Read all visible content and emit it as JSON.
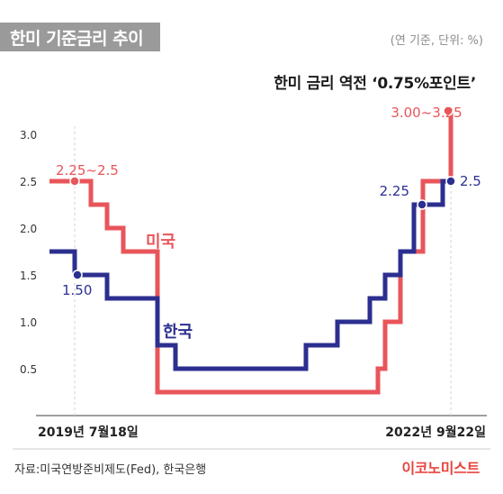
{
  "header": {
    "title": "한미 기준금리 추이",
    "unit_note": "(연 기준, 단위: %)",
    "subtitle": "한미 금리 역전 ‘0.75%포인트’"
  },
  "footer": {
    "source": "자료:미국연방준비제도(Fed), 한국은행",
    "brand": "이코노미스트"
  },
  "colors": {
    "us": "#e8555a",
    "korea": "#2c2f8f",
    "grid": "#d0d0d0"
  },
  "chart_data": {
    "type": "line",
    "step": true,
    "x_labels": {
      "start": "2019년 7월18일",
      "end": "2022년 9월22일"
    },
    "yticks": [
      "0.5",
      "1.0",
      "1.5",
      "2.0",
      "2.5",
      "3.0"
    ],
    "ylim": [
      0,
      3.0
    ],
    "series": [
      {
        "name": "미국",
        "values": [
          2.5,
          2.5,
          2.25,
          2.0,
          1.75,
          1.75,
          1.75,
          0.25,
          0.25,
          0.25,
          0.25,
          0.25,
          0.25,
          0.25,
          0.25,
          0.25,
          0.25,
          0.25,
          0.25,
          0.25,
          0.5,
          1.0,
          1.75,
          1.75,
          2.5,
          2.5,
          3.25
        ]
      },
      {
        "name": "한국",
        "values": [
          1.75,
          1.5,
          1.5,
          1.25,
          1.25,
          1.25,
          1.25,
          0.75,
          0.5,
          0.5,
          0.5,
          0.5,
          0.5,
          0.5,
          0.5,
          0.75,
          0.75,
          1.0,
          1.0,
          1.25,
          1.25,
          1.5,
          1.75,
          2.25,
          2.25,
          2.5,
          2.5
        ]
      }
    ],
    "annotations": [
      {
        "series": "미국",
        "index": 1,
        "text": "2.25~2.5"
      },
      {
        "series": "한국",
        "index": 1,
        "text": "1.50"
      },
      {
        "series": "한국",
        "index": 24,
        "text": "2.25"
      },
      {
        "series": "한국",
        "index": 26,
        "text": "2.5"
      },
      {
        "series": "미국",
        "index": 26,
        "text": "3.00~3.25"
      }
    ]
  }
}
